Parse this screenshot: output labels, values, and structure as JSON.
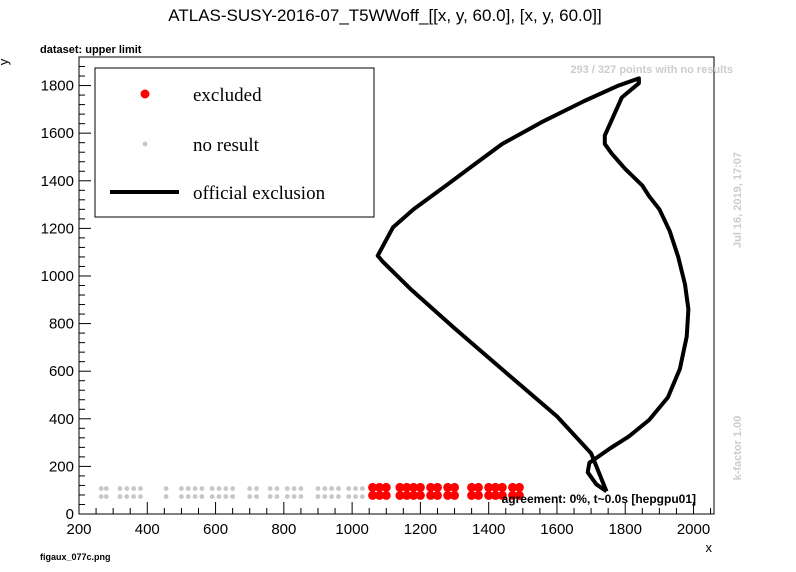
{
  "chart_data": {
    "type": "scatter",
    "title": "ATLAS-SUSY-2016-07_T5WWoff_[[x, y, 60.0], [x, y, 60.0]]",
    "subtitle": "dataset: upper limit",
    "xlabel": "x",
    "ylabel": "y",
    "xlim": [
      200,
      2060
    ],
    "ylim": [
      0,
      1920
    ],
    "x_ticks": [
      "200",
      "400",
      "600",
      "800",
      "1000",
      "1200",
      "1400",
      "1600",
      "1800",
      "2000"
    ],
    "y_ticks": [
      "0",
      "200",
      "400",
      "600",
      "800",
      "1000",
      "1200",
      "1400",
      "1600",
      "1800"
    ],
    "legend": {
      "placement": "top-left",
      "entries": [
        {
          "label": "excluded",
          "color": "#ff0000",
          "kind": "marker"
        },
        {
          "label": "no result",
          "color": "#c8c8c8",
          "kind": "small-marker"
        },
        {
          "label": "official exclusion",
          "color": "#000000",
          "kind": "line"
        }
      ]
    },
    "annotations": {
      "points_info": "293 / 327 points with no results",
      "date": "Jul 16, 2019, 17:07",
      "kfactor": "k-factor 1.00",
      "agreement": "agreement: 0%, t~0.0s [hepgpu01]",
      "filename": "figaux_077c.png"
    },
    "series": [
      {
        "name": "no result",
        "color": "#c8c8c8",
        "x": [
          265,
          280,
          320,
          340,
          360,
          380,
          455,
          500,
          520,
          540,
          560,
          590,
          610,
          630,
          650,
          700,
          720,
          760,
          780,
          810,
          830,
          850,
          900,
          920,
          940,
          960,
          990,
          1010,
          1030
        ],
        "y": [
          90,
          90,
          90,
          90,
          90,
          90,
          90,
          90,
          90,
          90,
          90,
          90,
          90,
          90,
          90,
          90,
          90,
          90,
          90,
          90,
          90,
          90,
          90,
          90,
          90,
          90,
          90,
          90,
          90
        ]
      },
      {
        "name": "excluded",
        "color": "#ff0000",
        "x": [
          1060,
          1080,
          1100,
          1140,
          1160,
          1180,
          1200,
          1230,
          1250,
          1280,
          1300,
          1350,
          1370,
          1400,
          1420,
          1440,
          1470,
          1490
        ],
        "y": [
          95,
          95,
          95,
          95,
          95,
          95,
          95,
          95,
          95,
          95,
          95,
          95,
          95,
          95,
          95,
          95,
          95,
          95
        ]
      },
      {
        "name": "official exclusion",
        "color": "#000000",
        "x": [
          1745,
          1715,
          1690,
          1695,
          1720,
          1755,
          1810,
          1870,
          1925,
          1960,
          1980,
          1985,
          1975,
          1955,
          1930,
          1900,
          1870,
          1850,
          1800,
          1760,
          1740,
          1740,
          1790,
          1840,
          1840,
          1780,
          1680,
          1560,
          1440,
          1350,
          1280,
          1180,
          1120,
          1075,
          1090,
          1175,
          1300,
          1450,
          1600,
          1700,
          1745
        ],
        "y": [
          95,
          125,
          175,
          215,
          240,
          275,
          325,
          395,
          490,
          610,
          745,
          860,
          965,
          1080,
          1190,
          1280,
          1335,
          1380,
          1450,
          1515,
          1555,
          1590,
          1750,
          1810,
          1830,
          1800,
          1735,
          1650,
          1555,
          1460,
          1385,
          1280,
          1205,
          1085,
          1060,
          940,
          780,
          595,
          410,
          255,
          95
        ]
      }
    ]
  }
}
